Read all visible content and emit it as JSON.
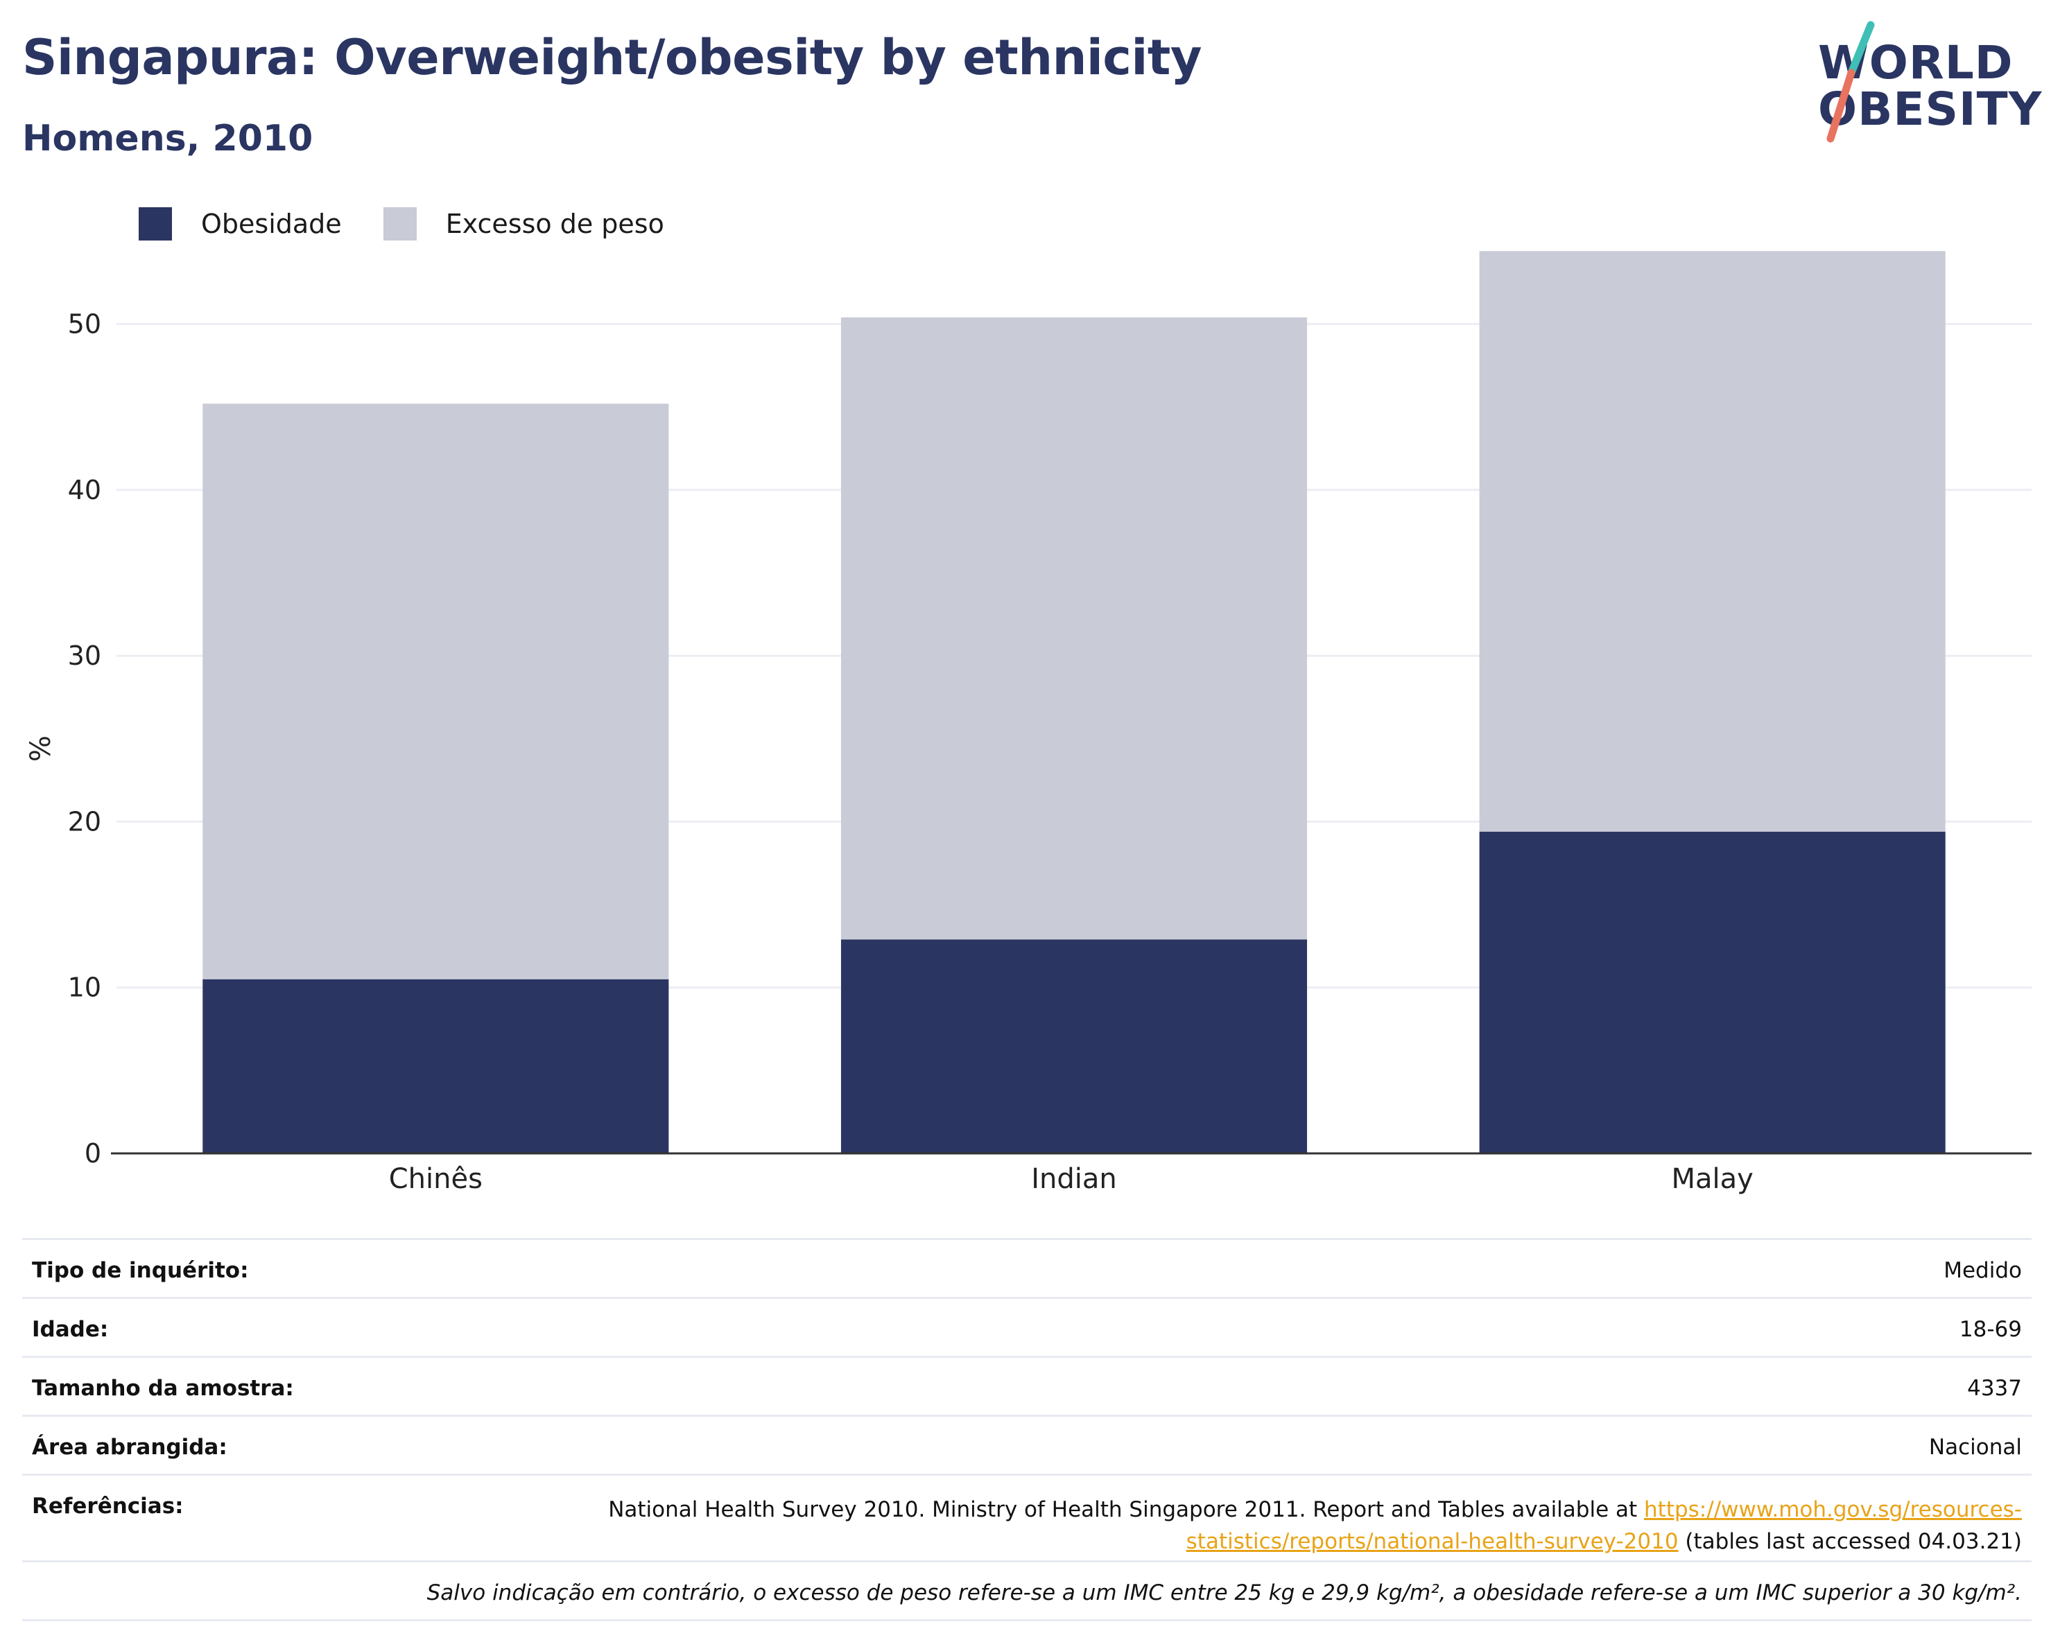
{
  "title": "Singapura: Overweight/obesity by ethnicity",
  "subtitle": "Homens, 2010",
  "logo": {
    "line1": "WORLD",
    "line2": "OBESITY"
  },
  "colors": {
    "obesity": "#2a3562",
    "overweight": "#c9cbd7",
    "grid": "#eceef3",
    "axis": "#333333",
    "link": "#e8a317",
    "title": "#2a3562",
    "logo_slash_teal": "#3fbfb5",
    "logo_slash_coral": "#e8735f"
  },
  "legend": [
    {
      "label": "Obesidade",
      "color": "#2a3562"
    },
    {
      "label": "Excesso de peso",
      "color": "#c9cbd7"
    }
  ],
  "chart_data": {
    "type": "bar",
    "stacked": true,
    "categories": [
      "Chinês",
      "Indian",
      "Malay"
    ],
    "series": [
      {
        "name": "Obesidade",
        "values": [
          10.5,
          12.9,
          19.4
        ]
      },
      {
        "name": "Excesso de peso",
        "values": [
          34.7,
          37.5,
          35.0
        ]
      }
    ],
    "ylabel": "%",
    "ylim": [
      0,
      57
    ],
    "yticks": [
      0,
      10,
      20,
      30,
      40,
      50
    ],
    "grid": true,
    "legend_position": "top-left"
  },
  "info_table": {
    "rows": [
      {
        "label": "Tipo de inquérito:",
        "value": "Medido"
      },
      {
        "label": "Idade:",
        "value": "18-69"
      },
      {
        "label": "Tamanho da amostra:",
        "value": "4337"
      },
      {
        "label": "Área abrangida:",
        "value": "Nacional"
      }
    ],
    "references_label": "Referências:",
    "references_text_before": "National Health Survey 2010. Ministry of Health Singapore 2011. Report and Tables available at ",
    "references_link": "https://www.moh.gov.sg/resources-statistics/reports/national-health-survey-2010",
    "references_text_after": " (tables last accessed 04.03.21)",
    "note": "Salvo indicação em contrário, o excesso de peso refere-se a um IMC entre 25 kg e 29,9 kg/m², a obesidade refere-se a um IMC superior a 30 kg/m²."
  }
}
